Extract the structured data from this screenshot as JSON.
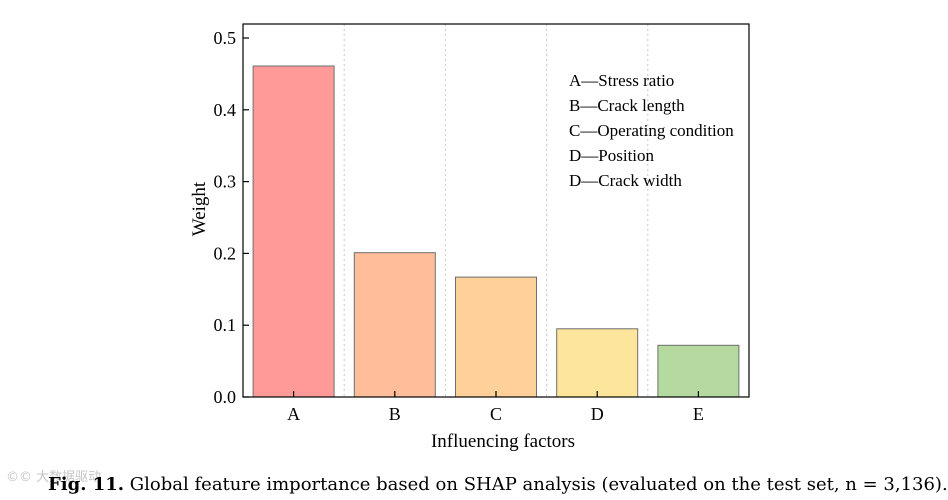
{
  "chart_data": {
    "type": "bar",
    "categories": [
      "A",
      "B",
      "C",
      "D",
      "E"
    ],
    "values": [
      0.461,
      0.201,
      0.167,
      0.095,
      0.072
    ],
    "colors": [
      "#ff9a98",
      "#ffbe99",
      "#ffd09a",
      "#fee59c",
      "#b4daa0"
    ],
    "xlabel": "Influencing factors",
    "ylabel": "Weight",
    "ylim": [
      0,
      0.5
    ],
    "yticks": [
      "0.0",
      "0.1",
      "0.2",
      "0.3",
      "0.4",
      "0.5"
    ],
    "grid": "vertical dotted",
    "legend": [
      "A—Stress ratio",
      "B—Crack length",
      "C—Operating condition",
      "D—Position",
      "D—Crack width"
    ]
  },
  "caption": {
    "label": "Fig. 11.",
    "text": "Global feature importance based on SHAP analysis (evaluated on the test set, n = 3,136)."
  },
  "watermark": "©© 大数据驱动"
}
